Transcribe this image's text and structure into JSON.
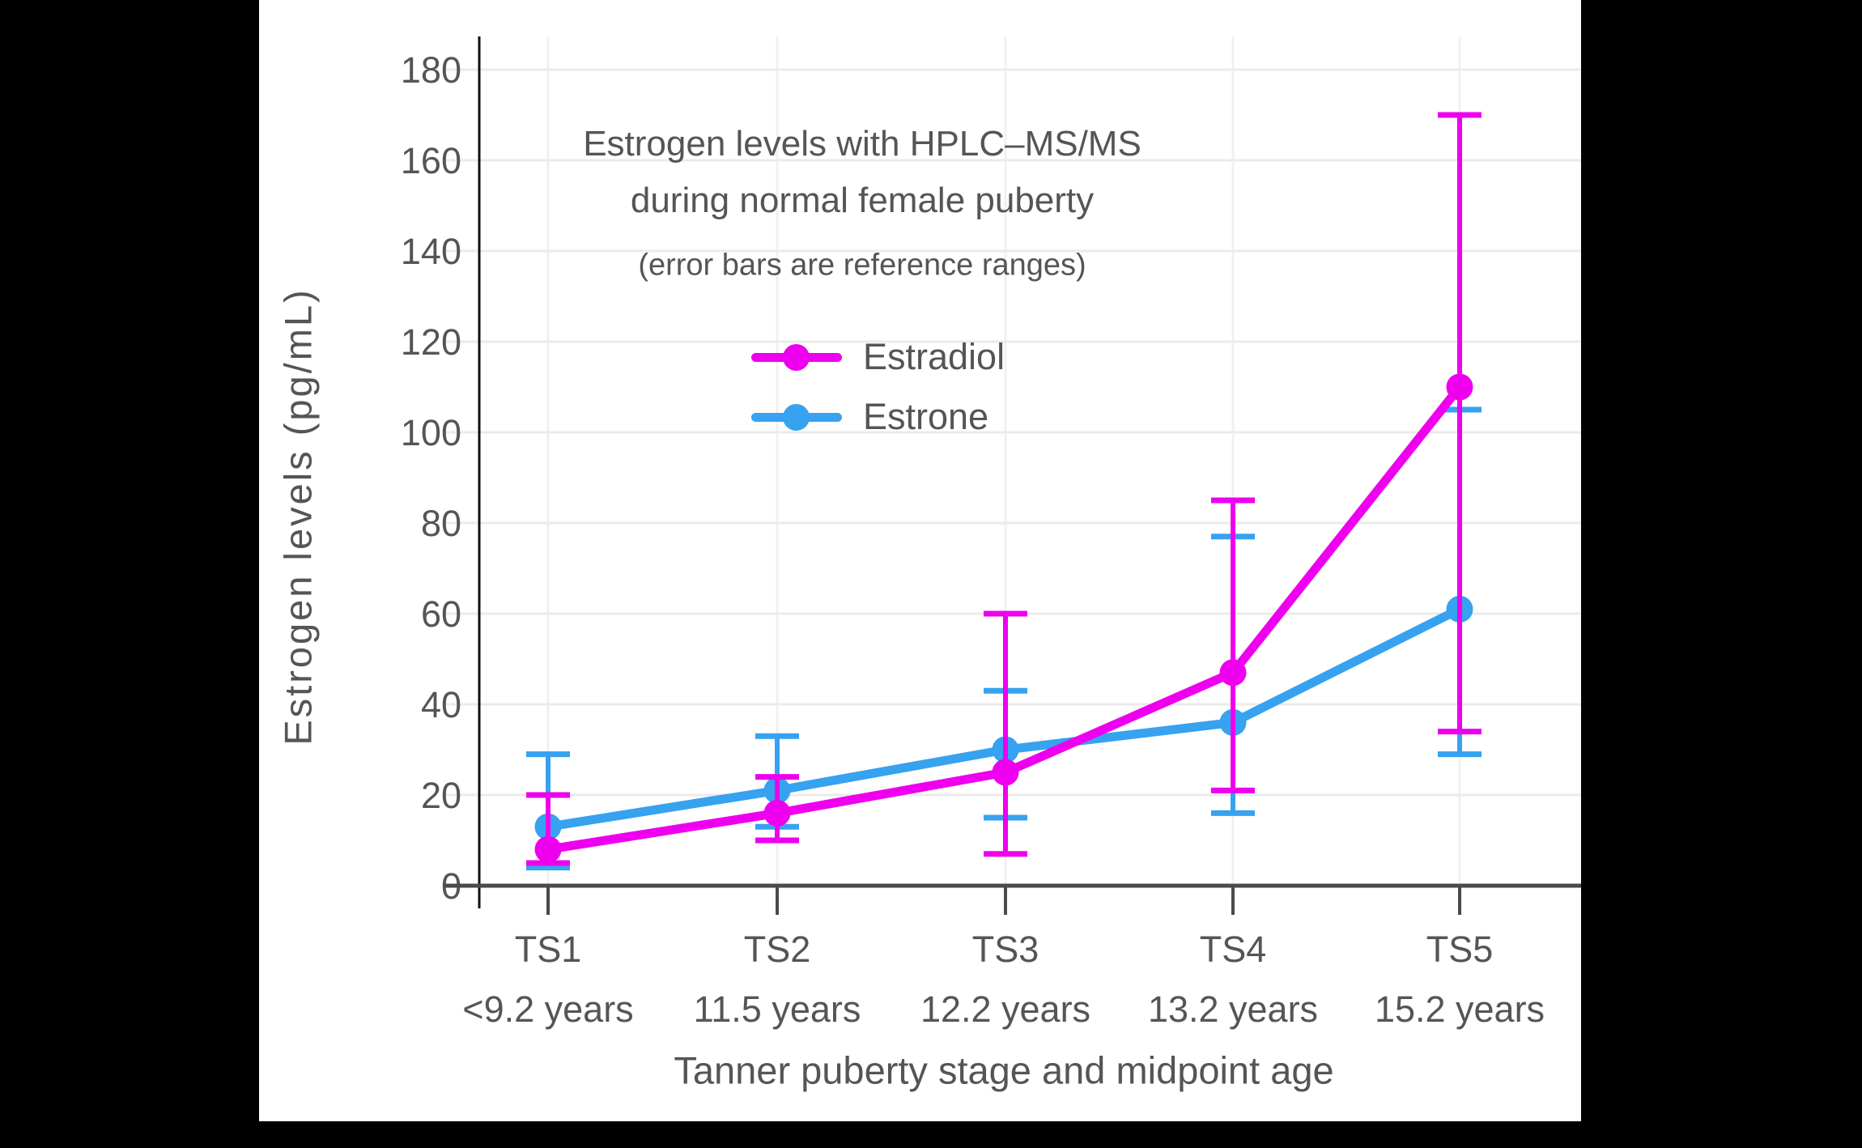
{
  "canvas": {
    "background": "#000000",
    "panel_background": "#ffffff"
  },
  "chart_data": {
    "type": "line",
    "title_line1": "Estrogen levels with HPLC–MS/MS",
    "title_line2": "during normal female puberty",
    "subtitle": "(error bars are reference ranges)",
    "ylabel": "Estrogen levels (pg/mL)",
    "xlabel": "Tanner puberty stage and midpoint age",
    "categories": [
      "TS1",
      "TS2",
      "TS3",
      "TS4",
      "TS5"
    ],
    "category_ages": [
      "<9.2 years",
      "11.5 years",
      "12.2 years",
      "13.2 years",
      "15.2 years"
    ],
    "yticks": [
      0,
      20,
      40,
      60,
      80,
      100,
      120,
      140,
      160,
      180
    ],
    "ylim": [
      0,
      187
    ],
    "grid": true,
    "legend_position": "upper-center-inside",
    "series": [
      {
        "name": "Estradiol",
        "color": "#ee00ee",
        "values": [
          8,
          16,
          25,
          47,
          110
        ],
        "error_low": [
          5,
          10,
          7,
          21,
          34
        ],
        "error_high": [
          20,
          24,
          60,
          85,
          170
        ]
      },
      {
        "name": "Estrone",
        "color": "#36a2f0",
        "values": [
          13,
          21,
          30,
          36,
          61
        ],
        "error_low": [
          4,
          13,
          15,
          16,
          29
        ],
        "error_high": [
          29,
          33,
          43,
          77,
          105
        ]
      }
    ],
    "axis_color": "#4a4a4a",
    "yaxis_line_color": "#111111",
    "text_color": "#555555",
    "gridline_color": "#ebebeb",
    "vertical_gridline_color": "#f1f1f1"
  }
}
